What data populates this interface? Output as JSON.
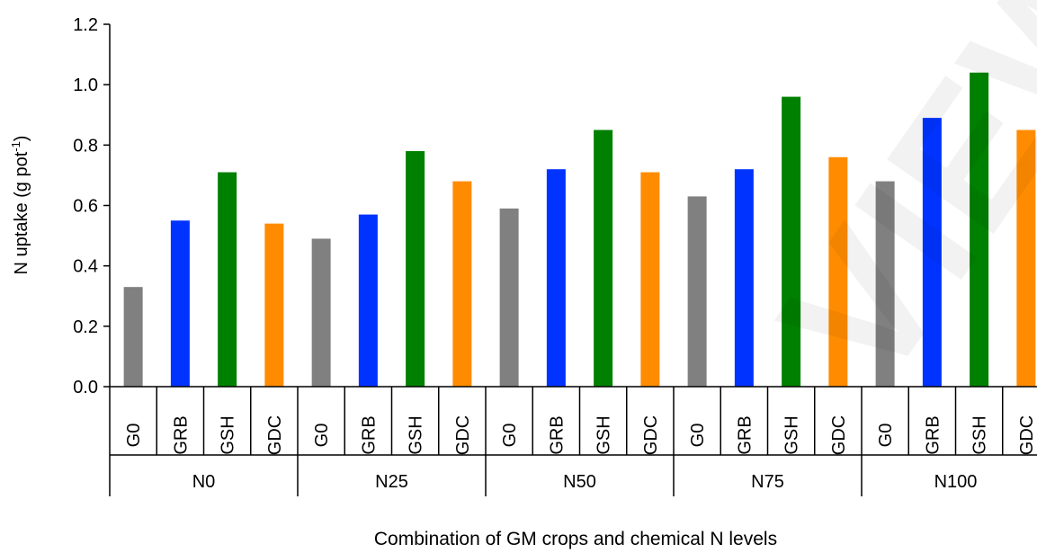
{
  "chart_data": {
    "type": "bar",
    "ylabel": "N uptake (g pot",
    "ylabel_sup": "-1",
    "ylabel_close": ")",
    "xlabel": "Combination of GM crops and chemical N levels",
    "ylim": [
      0.0,
      1.2
    ],
    "yticks": [
      "0.0",
      "0.2",
      "0.4",
      "0.6",
      "0.8",
      "1.0",
      "1.2"
    ],
    "grid": false,
    "groups": [
      {
        "name": "N0",
        "categories": [
          "G0",
          "GRB",
          "GSH",
          "GDC"
        ],
        "values": [
          0.33,
          0.55,
          0.71,
          0.54
        ]
      },
      {
        "name": "N25",
        "categories": [
          "G0",
          "GRB",
          "GSH",
          "GDC"
        ],
        "values": [
          0.49,
          0.57,
          0.78,
          0.68
        ]
      },
      {
        "name": "N50",
        "categories": [
          "G0",
          "GRB",
          "GSH",
          "GDC"
        ],
        "values": [
          0.59,
          0.72,
          0.85,
          0.71
        ]
      },
      {
        "name": "N75",
        "categories": [
          "G0",
          "GRB",
          "GSH",
          "GDC"
        ],
        "values": [
          0.63,
          0.72,
          0.96,
          0.76
        ]
      },
      {
        "name": "N100",
        "categories": [
          "G0",
          "GRB",
          "GSH",
          "GDC"
        ],
        "values": [
          0.68,
          0.89,
          1.04,
          0.85
        ]
      }
    ],
    "colors": {
      "G0": "#808080",
      "GRB": "#0033ff",
      "GSH": "#008000",
      "GDC": "#ff8c00"
    }
  },
  "watermark": "VIEW"
}
